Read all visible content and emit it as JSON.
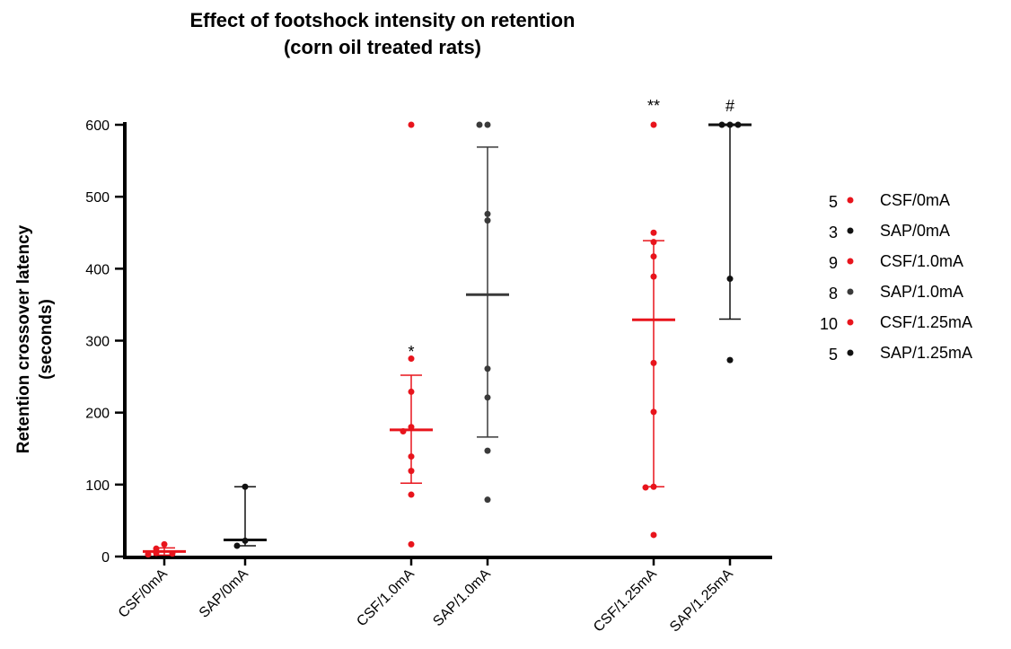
{
  "chart_data": {
    "type": "scatter",
    "title": [
      "Effect of footshock intensity on retention",
      "(corn oil treated rats)"
    ],
    "ylabel": [
      "Retention crossover latency",
      "(seconds)"
    ],
    "xlabel": "",
    "ylim": [
      0,
      600
    ],
    "yticks": [
      0,
      100,
      200,
      300,
      400,
      500,
      600
    ],
    "grid": false,
    "legend_position": "right",
    "colors": {
      "red": "#e8141c",
      "black": "#111111",
      "gray": "#3a3a3a"
    },
    "categories": [
      "CSF/0mA",
      "SAP/0mA",
      "CSF/1.0mA",
      "SAP/1.0mA",
      "CSF/1.25mA",
      "SAP/1.25mA"
    ],
    "groups": [
      {
        "name": "CSF/0mA",
        "n": "5",
        "color": "#e8141c",
        "points": [
          17,
          11,
          5,
          4,
          3
        ],
        "mean": 7,
        "error": [
          2,
          12
        ],
        "annotation": ""
      },
      {
        "name": "SAP/0mA",
        "n": "3",
        "color": "#111111",
        "points": [
          97,
          22,
          15
        ],
        "mean": 23,
        "error": [
          15,
          97
        ],
        "annotation": ""
      },
      {
        "name": "CSF/1.0mA",
        "n": "9",
        "color": "#e8141c",
        "points": [
          600,
          275,
          229,
          180,
          174,
          139,
          119,
          86,
          17
        ],
        "mean": 176,
        "error": [
          102,
          252
        ],
        "annotation": "*"
      },
      {
        "name": "SAP/1.0mA",
        "n": "8",
        "color": "#3a3a3a",
        "points": [
          600,
          600,
          476,
          467,
          261,
          221,
          147,
          79
        ],
        "mean": 364,
        "error": [
          166,
          569
        ],
        "annotation": ""
      },
      {
        "name": "CSF/1.25mA",
        "n": "10",
        "color": "#e8141c",
        "points": [
          600,
          450,
          437,
          417,
          389,
          269,
          201,
          97,
          96,
          30
        ],
        "mean": 329,
        "error": [
          97,
          439
        ],
        "annotation": "**"
      },
      {
        "name": "SAP/1.25mA",
        "n": "5",
        "color": "#111111",
        "points": [
          600,
          600,
          600,
          386,
          273
        ],
        "mean": 600,
        "error": [
          330,
          600
        ],
        "annotation": "#"
      }
    ]
  }
}
